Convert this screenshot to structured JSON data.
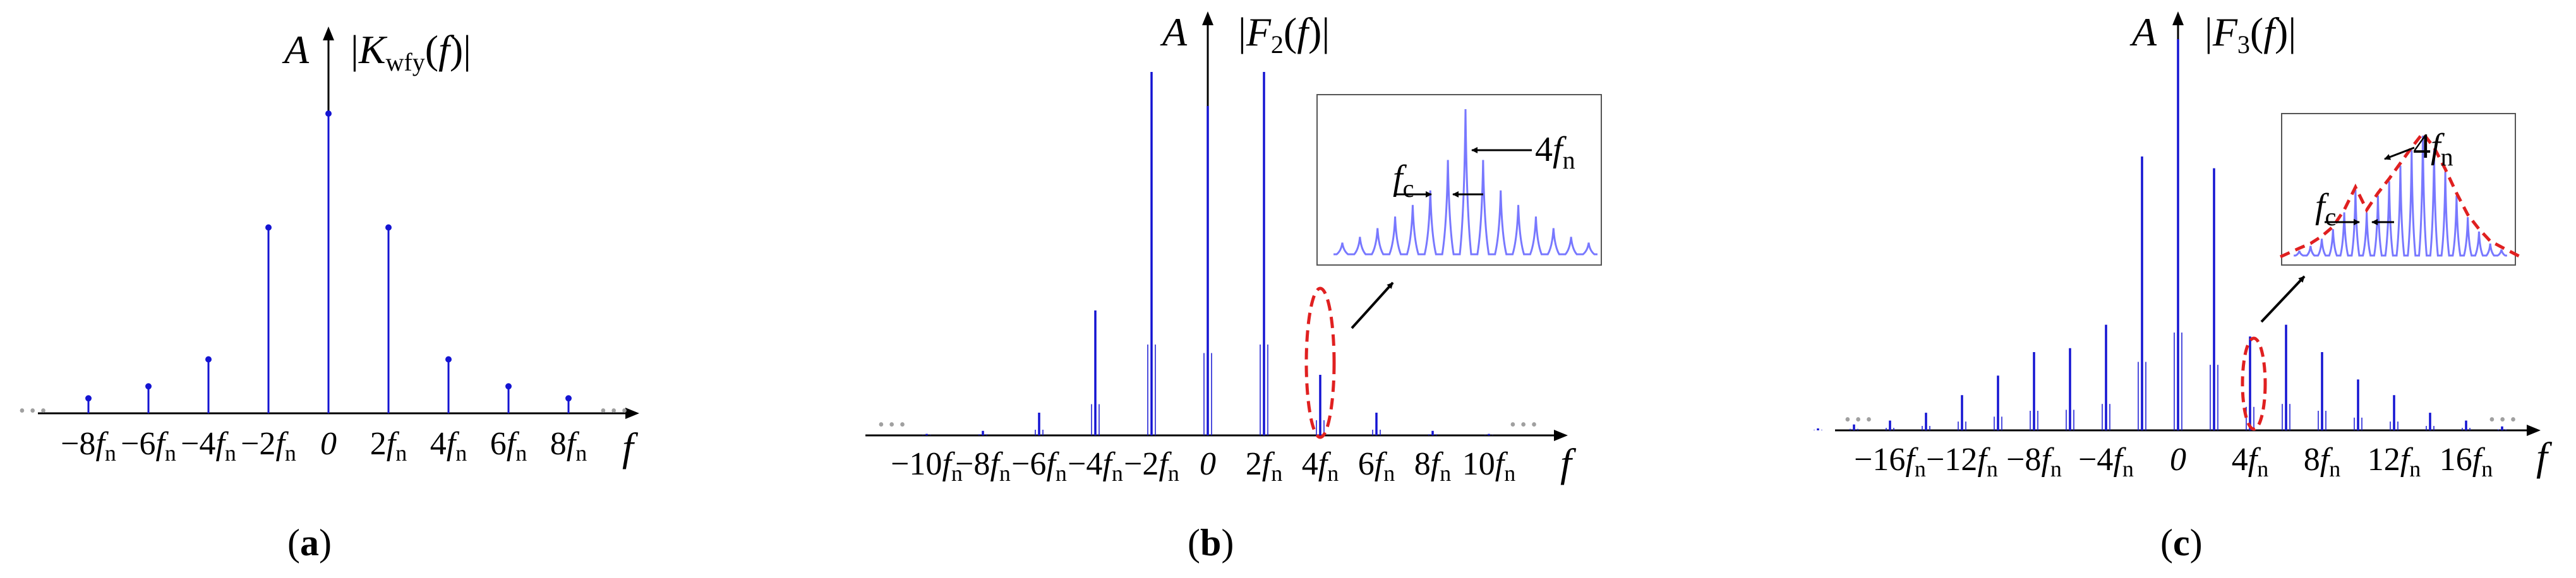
{
  "colors": {
    "stem": "#1414d2",
    "inset_line": "#7878ff",
    "envelope": "#e02020",
    "axis": "#000000",
    "dots": "#a0a0a0"
  },
  "panels": [
    {
      "id": "a",
      "sublabel": "a",
      "ylabel": "A",
      "title": {
        "open": "|",
        "var": "K",
        "sub": "wfy",
        "arg": "f",
        "close": "|"
      },
      "xlabel": "f",
      "ellipsis": "• • •",
      "ticks": [
        {
          "coef": "−8",
          "var": "f",
          "sub": "n"
        },
        {
          "coef": "−6",
          "var": "f",
          "sub": "n"
        },
        {
          "coef": "−4",
          "var": "f",
          "sub": "n"
        },
        {
          "coef": "−2",
          "var": "f",
          "sub": "n"
        },
        {
          "coef": "0",
          "var": "",
          "sub": ""
        },
        {
          "coef": "2",
          "var": "f",
          "sub": "n"
        },
        {
          "coef": "4",
          "var": "f",
          "sub": "n"
        },
        {
          "coef": "6",
          "var": "f",
          "sub": "n"
        },
        {
          "coef": "8",
          "var": "f",
          "sub": "n"
        }
      ],
      "stems": [
        {
          "x": -8,
          "h": 0.05
        },
        {
          "x": -6,
          "h": 0.09
        },
        {
          "x": -4,
          "h": 0.18
        },
        {
          "x": -2,
          "h": 0.62
        },
        {
          "x": 0,
          "h": 1.0
        },
        {
          "x": 2,
          "h": 0.62
        },
        {
          "x": 4,
          "h": 0.18
        },
        {
          "x": 6,
          "h": 0.09
        },
        {
          "x": 8,
          "h": 0.05
        }
      ]
    },
    {
      "id": "b",
      "sublabel": "b",
      "ylabel": "A",
      "title": {
        "open": "|",
        "var": "F",
        "sub": "2",
        "arg": "f",
        "close": "|"
      },
      "xlabel": "f",
      "ellipsis": "• • •",
      "ticks": [
        {
          "coef": "−10",
          "var": "f",
          "sub": "n"
        },
        {
          "coef": "−8",
          "var": "f",
          "sub": "n"
        },
        {
          "coef": "−6",
          "var": "f",
          "sub": "n"
        },
        {
          "coef": "−4",
          "var": "f",
          "sub": "n"
        },
        {
          "coef": "−2",
          "var": "f",
          "sub": "n"
        },
        {
          "coef": "0",
          "var": "",
          "sub": ""
        },
        {
          "coef": "2",
          "var": "f",
          "sub": "n"
        },
        {
          "coef": "4",
          "var": "f",
          "sub": "n"
        },
        {
          "coef": "6",
          "var": "f",
          "sub": "n"
        },
        {
          "coef": "8",
          "var": "f",
          "sub": "n"
        },
        {
          "coef": "10",
          "var": "f",
          "sub": "n"
        }
      ],
      "stems": [
        {
          "x": -10,
          "h": 0.004
        },
        {
          "x": -8,
          "h": 0.012
        },
        {
          "x": -6,
          "h": 0.06
        },
        {
          "x": -4,
          "h": 0.33
        },
        {
          "x": -2,
          "h": 0.96
        },
        {
          "x": 0,
          "h": 0.87
        },
        {
          "x": 2,
          "h": 0.96
        },
        {
          "x": 4,
          "h": 0.16
        },
        {
          "x": 6,
          "h": 0.06
        },
        {
          "x": 8,
          "h": 0.012
        },
        {
          "x": 10,
          "h": 0.004
        }
      ],
      "inset": {
        "fc_label": {
          "var": "f",
          "sub": "c"
        },
        "fn_label": {
          "coef": "4",
          "var": "f",
          "sub": "n"
        },
        "peaks": [
          0.08,
          0.12,
          0.18,
          0.26,
          0.34,
          0.44,
          0.65,
          1.0,
          0.65,
          0.44,
          0.34,
          0.26,
          0.18,
          0.12,
          0.08
        ]
      }
    },
    {
      "id": "c",
      "sublabel": "c",
      "ylabel": "A",
      "title": {
        "open": "|",
        "var": "F",
        "sub": "3",
        "arg": "f",
        "close": "|"
      },
      "xlabel": "f",
      "ellipsis": "• • •",
      "ticks": [
        {
          "coef": "−16",
          "var": "f",
          "sub": "n"
        },
        {
          "coef": "−12",
          "var": "f",
          "sub": "n"
        },
        {
          "coef": "−8",
          "var": "f",
          "sub": "n"
        },
        {
          "coef": "−4",
          "var": "f",
          "sub": "n"
        },
        {
          "coef": "0",
          "var": "",
          "sub": ""
        },
        {
          "coef": "4",
          "var": "f",
          "sub": "n"
        },
        {
          "coef": "8",
          "var": "f",
          "sub": "n"
        },
        {
          "coef": "12",
          "var": "f",
          "sub": "n"
        },
        {
          "coef": "16",
          "var": "f",
          "sub": "n"
        }
      ],
      "stems": [
        {
          "x": -20,
          "h": 0.005
        },
        {
          "x": -18,
          "h": 0.015
        },
        {
          "x": -16,
          "h": 0.025
        },
        {
          "x": -14,
          "h": 0.045
        },
        {
          "x": -12,
          "h": 0.09
        },
        {
          "x": -10,
          "h": 0.14
        },
        {
          "x": -8,
          "h": 0.2
        },
        {
          "x": -6,
          "h": 0.21
        },
        {
          "x": -4,
          "h": 0.27
        },
        {
          "x": -2,
          "h": 0.7
        },
        {
          "x": 0,
          "h": 1.0
        },
        {
          "x": 2,
          "h": 0.67
        },
        {
          "x": 4,
          "h": 0.24
        },
        {
          "x": 6,
          "h": 0.27
        },
        {
          "x": 8,
          "h": 0.2
        },
        {
          "x": 10,
          "h": 0.13
        },
        {
          "x": 12,
          "h": 0.09
        },
        {
          "x": 14,
          "h": 0.045
        },
        {
          "x": 16,
          "h": 0.025
        },
        {
          "x": 18,
          "h": 0.01
        }
      ],
      "inset": {
        "fc_label": {
          "var": "f",
          "sub": "c"
        },
        "fn_label": {
          "coef": "4",
          "var": "f",
          "sub": "n"
        },
        "peaks": [
          0.04,
          0.08,
          0.14,
          0.22,
          0.36,
          0.55,
          0.36,
          0.5,
          0.62,
          0.75,
          0.88,
          1.0,
          0.88,
          0.7,
          0.5,
          0.32,
          0.2,
          0.1,
          0.05
        ]
      }
    }
  ]
}
